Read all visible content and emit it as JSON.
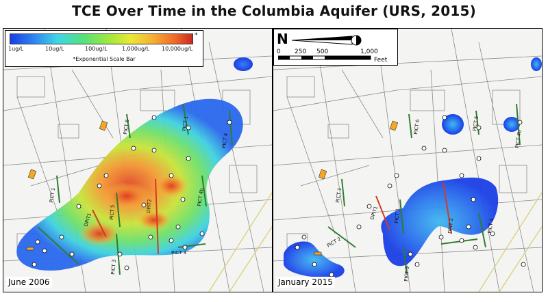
{
  "title": "TCE Over Time in the Columbia Aquifer (URS, 2015)",
  "legend": {
    "ticks": [
      "1ug/L",
      "10ug/L",
      "100ug/L",
      "1,000ug/L",
      "10,000ug/L"
    ],
    "star": "*",
    "note": "*Exponential Scale Bar",
    "colors": [
      "#1a3fe6",
      "#2f8bf0",
      "#3ed6e6",
      "#55e07c",
      "#a5e83a",
      "#e9e835",
      "#f5b133",
      "#f06b2a",
      "#c82a22"
    ]
  },
  "north_arrow": {
    "letter": "N"
  },
  "scale_bar": {
    "ticks": [
      "0",
      "250",
      "500",
      "1,000"
    ],
    "unit": "Feet"
  },
  "panels": [
    {
      "date": "June 2006",
      "labels": [
        "PICT 6",
        "PICT 1",
        "PICT 1",
        "DPIT1",
        "DPIT2",
        "PICT 5",
        "PICT 4",
        "PICT 4b",
        "PICT 3",
        "PICT 3"
      ]
    },
    {
      "date": "January 2015",
      "labels": [
        "PICT 6",
        "PICT 5",
        "PICT 1",
        "PICT 1",
        "DPIT1",
        "DPIT 2",
        "PICT 4b",
        "PICT 4",
        "PICT 3",
        "PICT 2"
      ]
    }
  ]
}
